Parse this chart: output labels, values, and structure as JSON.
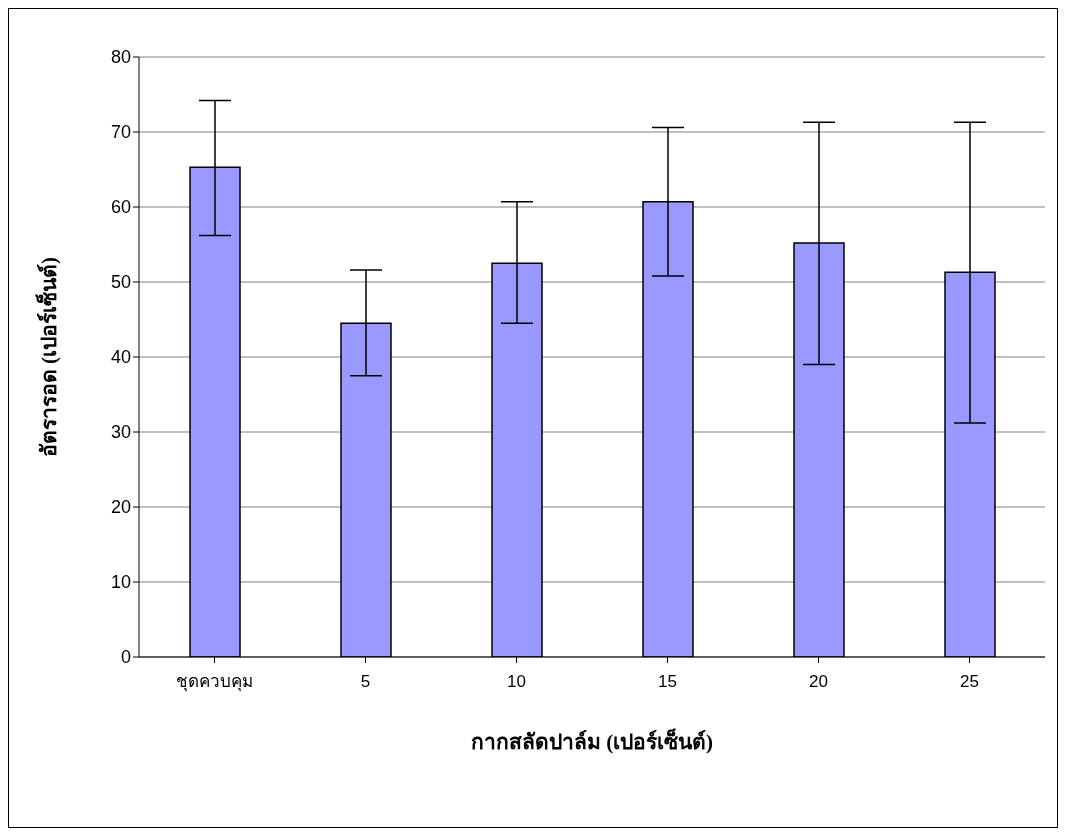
{
  "chart_data": {
    "type": "bar",
    "xlabel": "กากสลัดปาล์ม (เปอร์เซ็นต์)",
    "ylabel": "อัตรารอด (เปอร์เซ็นต์)",
    "categories": [
      "ชุดควบคุม",
      "5",
      "10",
      "15",
      "20",
      "25"
    ],
    "values": [
      65.3,
      44.5,
      52.5,
      60.7,
      55.2,
      51.3
    ],
    "errors": [
      [
        56.2,
        74.2
      ],
      [
        37.5,
        51.6
      ],
      [
        44.5,
        60.7
      ],
      [
        50.8,
        70.6
      ],
      [
        39.0,
        71.3
      ],
      [
        31.2,
        71.3
      ]
    ],
    "color": "#9999ff",
    "ylim": [
      0,
      80
    ],
    "yticks": [
      0,
      10,
      20,
      30,
      40,
      50,
      60,
      70,
      80
    ],
    "grid": "y"
  }
}
